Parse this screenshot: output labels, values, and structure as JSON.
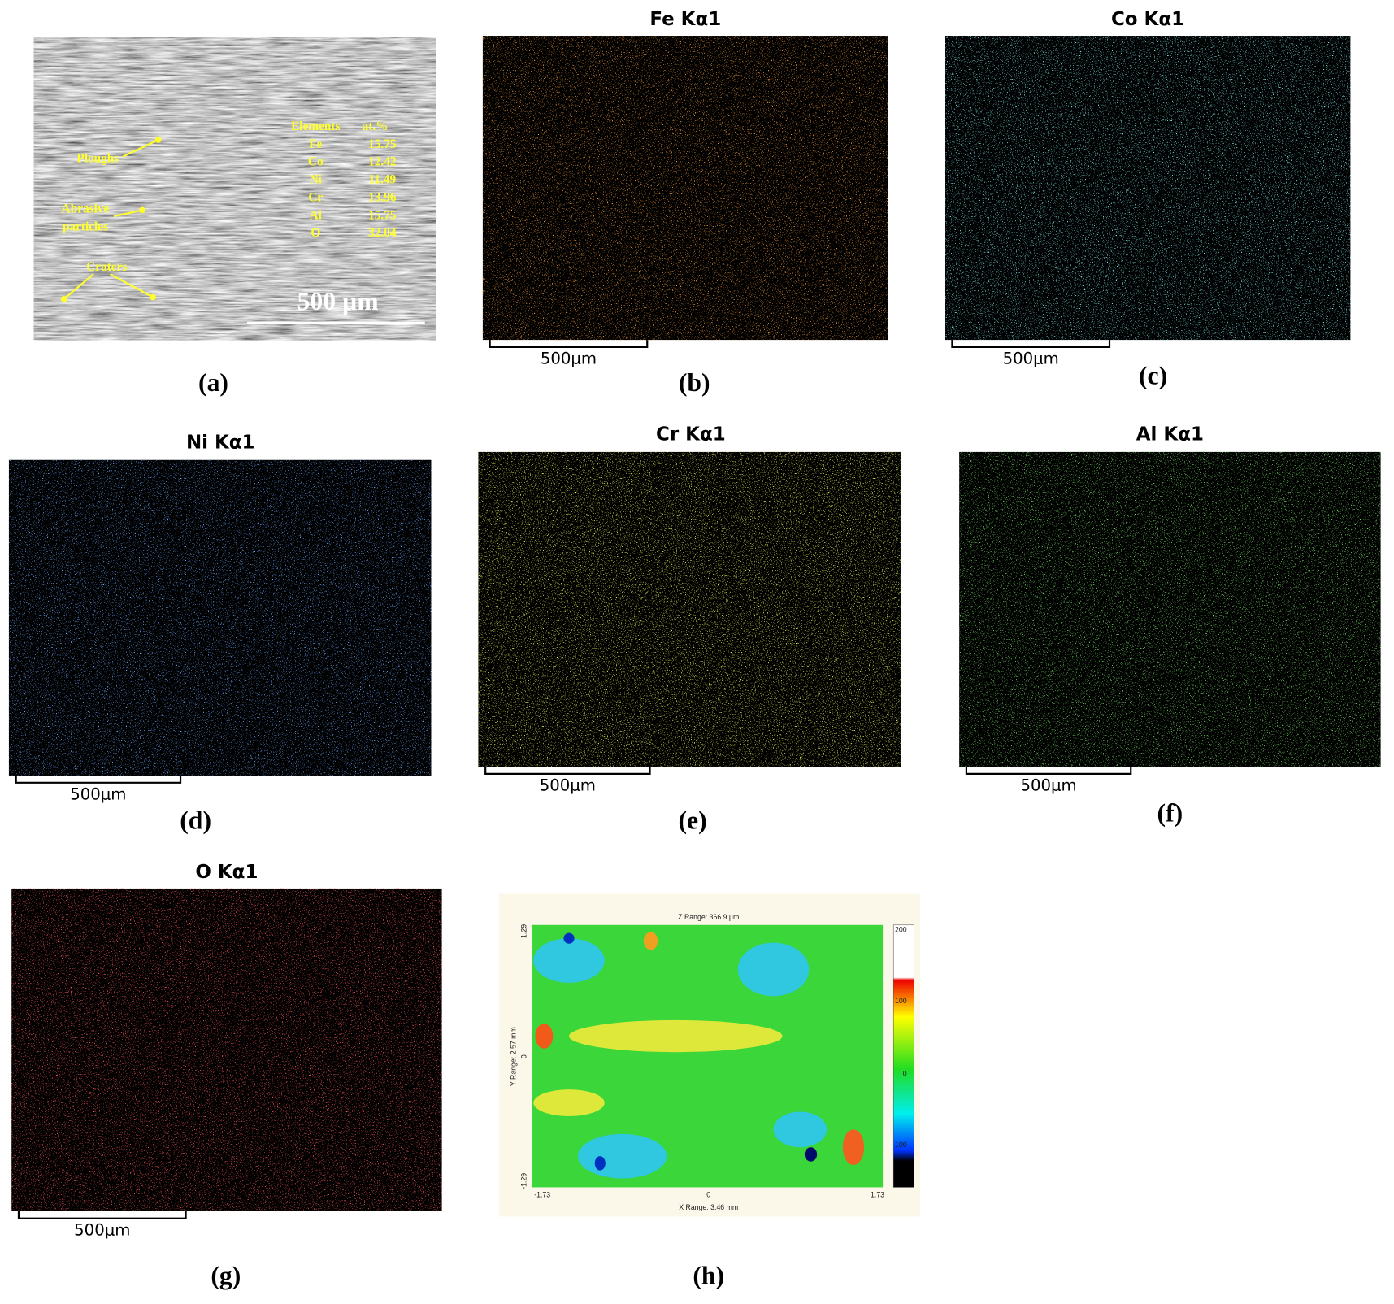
{
  "panels": [
    {
      "label": "(a)",
      "annotations": [
        "Ploughs",
        "Abrasive",
        "particles",
        "Craters"
      ],
      "scale_bar": "500 µm",
      "table": {
        "header": [
          "Elements",
          "at.%"
        ],
        "rows": [
          [
            "Fe",
            "15.75"
          ],
          [
            "Co",
            "12.42"
          ],
          [
            "Ni",
            "11.49"
          ],
          [
            "Cr",
            "13.96"
          ],
          [
            "Al",
            "15.75"
          ],
          [
            "O",
            "32.04"
          ]
        ]
      }
    },
    {
      "label": "(b)",
      "title": "Fe Kα1",
      "scale_bar": "500μm"
    },
    {
      "label": "(c)",
      "title": "Co Kα1",
      "scale_bar": "500μm"
    },
    {
      "label": "(d)",
      "title": "Ni Kα1",
      "scale_bar": "500μm"
    },
    {
      "label": "(e)",
      "title": "Cr Kα1",
      "scale_bar": "500μm"
    },
    {
      "label": "(f)",
      "title": "Al Kα1",
      "scale_bar": "500μm"
    },
    {
      "label": "(g)",
      "title": "O Kα1",
      "scale_bar": "500μm"
    },
    {
      "label": "(h)",
      "z_range": "Z Range:  366.9 µm",
      "x_range": "X Range:  3.46 mm",
      "y_range": "Y Range:  2.57 mm",
      "y_ticks": [
        "1.29",
        "0",
        "-1.29"
      ],
      "x_ticks": [
        "-1.73",
        "0",
        "1.73"
      ],
      "colorbar_ticks": [
        "200",
        "100",
        "0",
        "-100"
      ]
    }
  ]
}
